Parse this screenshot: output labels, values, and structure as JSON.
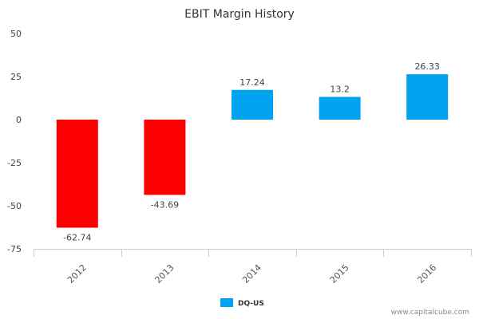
{
  "chart_data": {
    "type": "bar",
    "title": "EBIT Margin History",
    "categories": [
      "2012",
      "2013",
      "2014",
      "2015",
      "2016"
    ],
    "series": [
      {
        "name": "DQ-US",
        "values": [
          -62.74,
          -43.69,
          17.24,
          13.2,
          26.33
        ],
        "data_labels": [
          "-62.74",
          "-43.69",
          "17.24",
          "13.2",
          "26.33"
        ]
      }
    ],
    "ylim": [
      -75,
      50
    ],
    "yticks": [
      50,
      25,
      0,
      -25,
      -50,
      -75
    ],
    "ytick_labels": [
      "50",
      "25",
      "0",
      "-25",
      "-50",
      "-75"
    ],
    "grid": false,
    "legend_position": "bottom-center",
    "colors": {
      "positive": "#00a2f0",
      "negative": "#ff0000",
      "axis": "#cccccc"
    }
  },
  "credit": "www.capitalcube.com"
}
